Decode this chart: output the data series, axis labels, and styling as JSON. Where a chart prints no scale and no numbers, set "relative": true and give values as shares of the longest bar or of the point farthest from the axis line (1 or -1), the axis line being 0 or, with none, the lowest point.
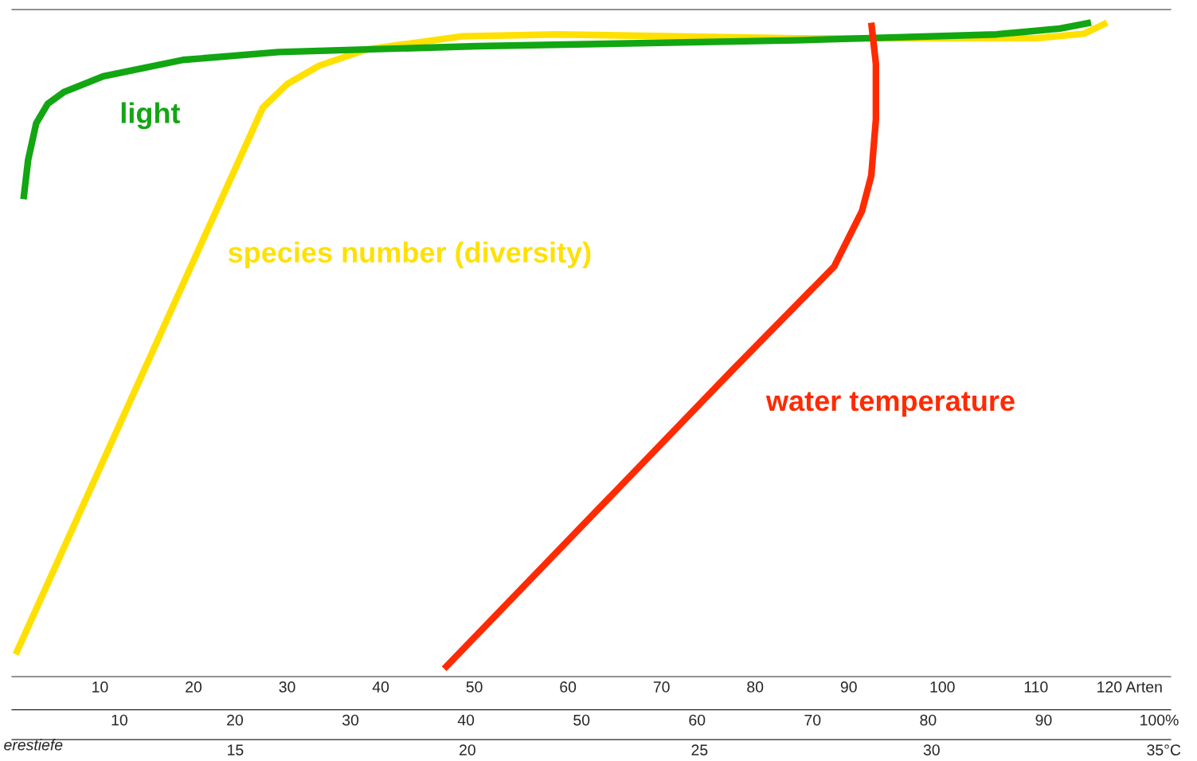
{
  "chart_data": [
    {
      "type": "line",
      "relative": true,
      "grid": false,
      "legend": false,
      "line_style": "solid",
      "marker": "none",
      "xlim": [
        0.6,
        124.4
      ],
      "xticks": [
        10,
        20,
        30,
        40,
        50,
        60,
        70,
        80,
        90,
        100,
        110,
        {
          "value": 120,
          "label": "120 Arten"
        }
      ],
      "series": [
        {
          "name": "species number (diversity)",
          "color": "#ffe000",
          "x": [
            1.0,
            27.4,
            30.0,
            33.4,
            38.5,
            48.7,
            58.9,
            84.4,
            110.0,
            115.1,
            117.6
          ],
          "values": [
            0.034,
            0.87,
            0.906,
            0.934,
            0.959,
            0.979,
            0.982,
            0.976,
            0.976,
            0.983,
            1.0
          ]
        }
      ]
    },
    {
      "type": "line",
      "relative": true,
      "grid": false,
      "legend": false,
      "line_style": "solid",
      "marker": "none",
      "xlim": [
        0.7,
        101.0
      ],
      "xticks": [
        10,
        20,
        30,
        40,
        50,
        60,
        70,
        80,
        90,
        {
          "value": 100,
          "label": "100%"
        }
      ],
      "series": [
        {
          "name": "light",
          "color": "#12a612",
          "x": [
            1.7,
            2.1,
            2.8,
            3.8,
            5.2,
            8.6,
            15.5,
            23.8,
            41.0,
            68.6,
            85.9,
            91.4,
            94.1
          ],
          "values": [
            0.73,
            0.79,
            0.846,
            0.876,
            0.894,
            0.918,
            0.943,
            0.955,
            0.964,
            0.973,
            0.982,
            0.991,
            1.0
          ]
        }
      ]
    },
    {
      "type": "line",
      "relative": true,
      "grid": false,
      "legend": false,
      "line_style": "solid",
      "marker": "none",
      "xlim": [
        10.19,
        35.15
      ],
      "xticks": [
        15,
        20,
        25,
        30,
        {
          "value": 35,
          "label": "35°C"
        }
      ],
      "annotations": [
        "erestiefe"
      ],
      "series": [
        {
          "name": "water temperature",
          "color": "#ff2a00",
          "x": [
            19.5,
            25.7,
            27.9,
            28.5,
            28.7,
            28.8,
            28.8,
            28.7
          ],
          "values": [
            0.012,
            0.468,
            0.627,
            0.712,
            0.766,
            0.852,
            0.937,
            1.0
          ]
        }
      ]
    }
  ]
}
